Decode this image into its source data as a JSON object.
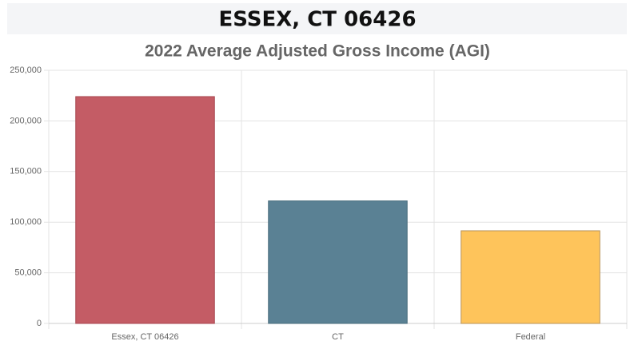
{
  "header": {
    "title": "ESSEX, CT 06426"
  },
  "chart_data": {
    "type": "bar",
    "title": "2022 Average Adjusted Gross Income (AGI)",
    "categories": [
      "Essex, CT 06426",
      "CT",
      "Federal"
    ],
    "values": [
      224000,
      121000,
      91500
    ],
    "colors": [
      "#c45c65",
      "#5a8194",
      "#fec45b"
    ],
    "border_colors": [
      "#a8464f",
      "#4a6d7d",
      "#b8935a"
    ],
    "ylim": [
      0,
      250000
    ],
    "yticks": [
      0,
      {
        "value": 50000,
        "label": "50,000"
      },
      {
        "value": 100000,
        "label": "100,000"
      },
      {
        "value": 150000,
        "label": "150,000"
      },
      {
        "value": 200000,
        "label": "200,000"
      },
      {
        "value": 250000,
        "label": "250,000"
      }
    ],
    "grid": true
  }
}
